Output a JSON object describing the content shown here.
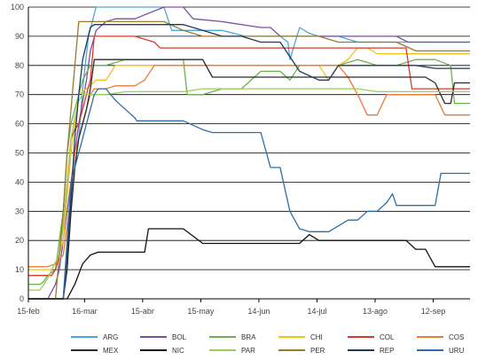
{
  "chart_data": {
    "type": "line",
    "title": "",
    "xlabel": "",
    "ylabel": "",
    "ylim": [
      0,
      100
    ],
    "y_ticks": [
      0,
      10,
      20,
      30,
      40,
      50,
      60,
      70,
      80,
      90,
      100
    ],
    "x_ticks": [
      "15-feb",
      "16-mar",
      "15-abr",
      "15-may",
      "14-jun",
      "14-jul",
      "13-ago",
      "12-sep"
    ],
    "x_tick_positions": [
      0,
      29,
      59,
      89,
      119,
      149,
      179,
      209
    ],
    "x_range": [
      0,
      228
    ],
    "grid": "horizontal",
    "legend_position": "bottom",
    "series": [
      {
        "name": "ARG",
        "color": "#4aa8d8",
        "x": [
          0,
          18,
          20,
          22,
          24,
          26,
          28,
          31,
          33,
          35,
          60,
          70,
          72,
          74,
          100,
          112,
          120,
          125,
          130,
          134,
          135,
          140,
          145,
          150,
          160,
          170,
          180,
          185,
          190,
          200,
          210,
          228
        ],
        "y": [
          0,
          0,
          15,
          30,
          45,
          55,
          72,
          90,
          95,
          100,
          100,
          100,
          96,
          92,
          92,
          90,
          90,
          90,
          90,
          88,
          82,
          93,
          91,
          90,
          90,
          88,
          88,
          88,
          88,
          88,
          88,
          88
        ]
      },
      {
        "name": "BOL",
        "color": "#7a4fa3",
        "x": [
          0,
          10,
          14,
          16,
          18,
          20,
          22,
          24,
          26,
          30,
          32,
          35,
          40,
          45,
          55,
          70,
          80,
          85,
          100,
          120,
          125,
          130,
          135,
          150,
          160,
          170,
          180,
          190,
          196,
          200,
          228
        ],
        "y": [
          0,
          0,
          5,
          10,
          20,
          30,
          40,
          50,
          60,
          75,
          85,
          92,
          95,
          96,
          96,
          100,
          100,
          96,
          95,
          93,
          93,
          90,
          90,
          90,
          90,
          90,
          90,
          90,
          88,
          88,
          88
        ]
      },
      {
        "name": "BRA",
        "color": "#6ab04c",
        "x": [
          0,
          6,
          8,
          10,
          14,
          16,
          18,
          20,
          22,
          24,
          28,
          32,
          40,
          50,
          60,
          70,
          80,
          82,
          90,
          100,
          110,
          120,
          125,
          130,
          135,
          140,
          150,
          160,
          170,
          180,
          190,
          200,
          210,
          218,
          220,
          228
        ],
        "y": [
          5,
          5,
          6,
          8,
          10,
          20,
          30,
          50,
          60,
          65,
          75,
          80,
          80,
          82,
          82,
          82,
          82,
          70,
          70,
          72,
          72,
          78,
          78,
          78,
          75,
          80,
          80,
          80,
          82,
          80,
          80,
          82,
          82,
          80,
          67,
          67
        ]
      },
      {
        "name": "CHI",
        "color": "#f2c21b",
        "x": [
          0,
          12,
          16,
          18,
          20,
          22,
          24,
          26,
          30,
          35,
          40,
          45,
          60,
          70,
          80,
          85,
          100,
          110,
          120,
          130,
          140,
          150,
          155,
          160,
          165,
          170,
          175,
          180,
          190,
          200,
          205,
          210,
          228
        ],
        "y": [
          10,
          10,
          15,
          20,
          35,
          50,
          60,
          70,
          72,
          75,
          75,
          80,
          80,
          80,
          80,
          80,
          80,
          80,
          80,
          80,
          80,
          80,
          75,
          80,
          82,
          86,
          86,
          84,
          84,
          84,
          84,
          84,
          84
        ]
      },
      {
        "name": "COL",
        "color": "#d93a2b",
        "x": [
          0,
          12,
          14,
          16,
          18,
          20,
          22,
          24,
          26,
          28,
          30,
          32,
          34,
          38,
          45,
          55,
          60,
          65,
          68,
          70,
          75,
          80,
          85,
          90,
          100,
          110,
          120,
          130,
          140,
          150,
          160,
          170,
          180,
          190,
          195,
          198,
          200,
          228
        ],
        "y": [
          8,
          8,
          10,
          15,
          25,
          40,
          55,
          58,
          60,
          65,
          70,
          75,
          90,
          90,
          90,
          90,
          89,
          88,
          86,
          86,
          86,
          86,
          86,
          86,
          86,
          86,
          86,
          86,
          86,
          86,
          86,
          86,
          86,
          86,
          86,
          72,
          72,
          72
        ]
      },
      {
        "name": "COS",
        "color": "#ea7b31",
        "x": [
          0,
          10,
          14,
          18,
          20,
          22,
          24,
          26,
          28,
          30,
          32,
          34,
          40,
          45,
          50,
          55,
          60,
          62,
          65,
          70,
          75,
          80,
          90,
          100,
          110,
          120,
          130,
          140,
          150,
          160,
          165,
          170,
          175,
          180,
          185,
          190,
          200,
          210,
          215,
          228
        ],
        "y": [
          11,
          11,
          12,
          15,
          25,
          35,
          50,
          55,
          60,
          65,
          70,
          72,
          72,
          73,
          73,
          73,
          75,
          77,
          80,
          80,
          80,
          80,
          80,
          80,
          80,
          80,
          80,
          80,
          80,
          80,
          76,
          70,
          63,
          63,
          70,
          70,
          70,
          70,
          63,
          63
        ]
      },
      {
        "name": "MEX",
        "color": "#2a2a2a",
        "x": [
          0,
          18,
          20,
          22,
          24,
          26,
          28,
          30,
          32,
          34,
          40,
          50,
          60,
          70,
          75,
          80,
          90,
          95,
          100,
          110,
          120,
          130,
          140,
          150,
          160,
          170,
          180,
          190,
          200,
          205,
          210,
          215,
          218,
          220,
          228
        ],
        "y": [
          0,
          0,
          10,
          30,
          45,
          55,
          60,
          65,
          72,
          82,
          82,
          82,
          82,
          82,
          82,
          82,
          82,
          76,
          76,
          76,
          76,
          76,
          76,
          76,
          76,
          76,
          76,
          76,
          76,
          76,
          74,
          67,
          67,
          74,
          74
        ]
      },
      {
        "name": "NIC",
        "color": "#111111",
        "x": [
          0,
          20,
          24,
          28,
          32,
          36,
          40,
          60,
          62,
          70,
          75,
          80,
          90,
          100,
          110,
          120,
          130,
          140,
          145,
          150,
          160,
          170,
          180,
          190,
          195,
          200,
          205,
          210,
          228
        ],
        "y": [
          0,
          0,
          5,
          12,
          15,
          16,
          16,
          16,
          24,
          24,
          24,
          24,
          19,
          19,
          19,
          19,
          19,
          19,
          22,
          20,
          20,
          20,
          20,
          20,
          20,
          17,
          17,
          11,
          11
        ]
      },
      {
        "name": "PAR",
        "color": "#9acd5a",
        "x": [
          0,
          6,
          8,
          10,
          12,
          16,
          18,
          20,
          22,
          24,
          26,
          28,
          30,
          40,
          50,
          60,
          70,
          80,
          90,
          100,
          110,
          120,
          125,
          130,
          140,
          150,
          160,
          170,
          180,
          190,
          200,
          210,
          228
        ],
        "y": [
          3,
          3,
          5,
          7,
          10,
          15,
          25,
          40,
          55,
          62,
          68,
          70,
          70,
          70,
          71,
          71,
          71,
          71,
          72,
          72,
          72,
          72,
          72,
          72,
          72,
          72,
          72,
          72,
          71,
          71,
          71,
          71,
          71
        ]
      },
      {
        "name": "PER",
        "color": "#9b7a2e",
        "x": [
          0,
          14,
          16,
          18,
          20,
          22,
          24,
          26,
          28,
          30,
          32,
          34,
          40,
          45,
          50,
          55,
          60,
          70,
          80,
          90,
          100,
          110,
          120,
          130,
          140,
          150,
          160,
          170,
          180,
          190,
          200,
          210,
          228
        ],
        "y": [
          0,
          0,
          15,
          30,
          50,
          65,
          80,
          95,
          95,
          95,
          95,
          95,
          95,
          95,
          95,
          95,
          95,
          95,
          92,
          90,
          90,
          90,
          90,
          90,
          90,
          90,
          88,
          88,
          88,
          88,
          85,
          85,
          85
        ]
      },
      {
        "name": "REP",
        "color": "#1f3b5c",
        "x": [
          0,
          18,
          20,
          22,
          24,
          26,
          28,
          32,
          34,
          40,
          50,
          60,
          70,
          80,
          90,
          100,
          110,
          120,
          130,
          140,
          150,
          155,
          160,
          170,
          180,
          190,
          200,
          210,
          220,
          228
        ],
        "y": [
          0,
          0,
          15,
          35,
          55,
          70,
          82,
          93,
          94,
          94,
          94,
          94,
          94,
          94,
          92,
          90,
          90,
          88,
          88,
          78,
          75,
          75,
          80,
          80,
          80,
          80,
          80,
          79,
          79,
          79
        ]
      },
      {
        "name": "URU",
        "color": "#2e6ea8",
        "x": [
          0,
          18,
          20,
          22,
          24,
          26,
          28,
          30,
          32,
          34,
          36,
          38,
          40,
          45,
          50,
          55,
          56,
          60,
          70,
          80,
          90,
          95,
          100,
          110,
          120,
          125,
          130,
          135,
          140,
          145,
          150,
          155,
          160,
          165,
          170,
          175,
          180,
          185,
          188,
          190,
          195,
          200,
          205,
          210,
          213,
          220,
          228
        ],
        "y": [
          0,
          0,
          20,
          40,
          45,
          50,
          55,
          60,
          65,
          70,
          72,
          72,
          72,
          68,
          65,
          62,
          61,
          61,
          61,
          61,
          58,
          57,
          57,
          57,
          57,
          45,
          45,
          30,
          24,
          23,
          23,
          23,
          25,
          27,
          27,
          30,
          30,
          33,
          36,
          32,
          32,
          32,
          32,
          32,
          43,
          43,
          43
        ]
      }
    ]
  }
}
